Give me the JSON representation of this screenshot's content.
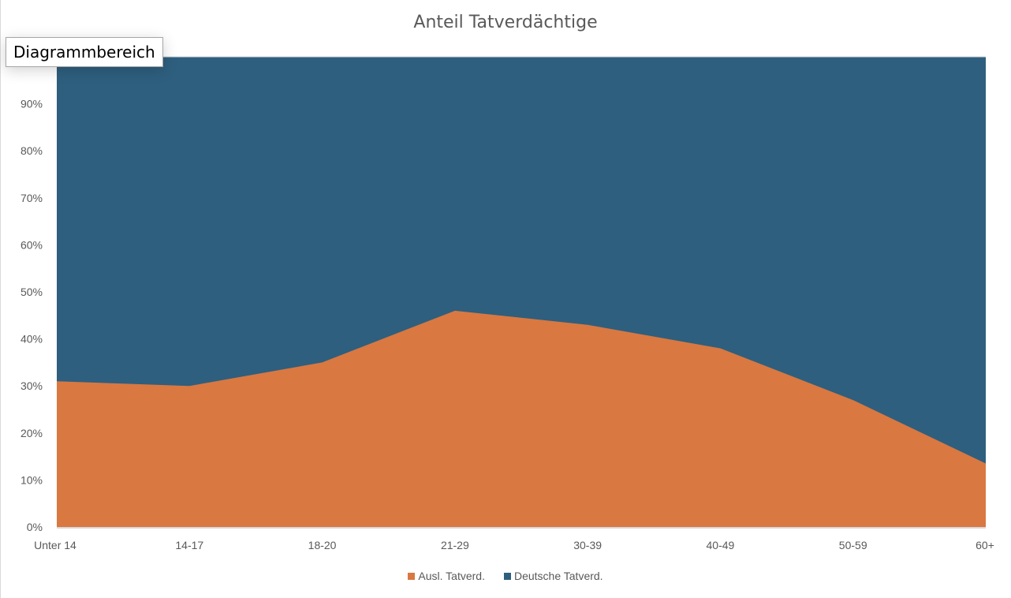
{
  "tooltip": "Diagrammbereich",
  "colors": {
    "auslaender": "#D97841",
    "deutsche": "#2E5F7E",
    "axis": "#D9D9D9"
  },
  "chart_data": {
    "type": "area",
    "stacked": "percent",
    "title": "Anteil Tatverdächtige",
    "xlabel": "",
    "ylabel": "",
    "categories": [
      "Unter 14",
      "14-17",
      "18-20",
      "21-29",
      "30-39",
      "40-49",
      "50-59",
      "60+"
    ],
    "series": [
      {
        "name": "Ausl. Tatverd.",
        "values": [
          31,
          30,
          35,
          46,
          43,
          38,
          27,
          13.5
        ]
      },
      {
        "name": "Deutsche Tatverd.",
        "values": [
          69,
          70,
          65,
          54,
          57,
          62,
          73,
          86.5
        ]
      }
    ],
    "yticks": [
      "0%",
      "10%",
      "20%",
      "30%",
      "40%",
      "50%",
      "60%",
      "70%",
      "80%",
      "90%"
    ],
    "ylim": [
      0,
      100
    ],
    "grid": false,
    "legend_position": "bottom"
  },
  "legend": [
    {
      "label": "Ausl. Tatverd."
    },
    {
      "label": "Deutsche Tatverd."
    }
  ]
}
